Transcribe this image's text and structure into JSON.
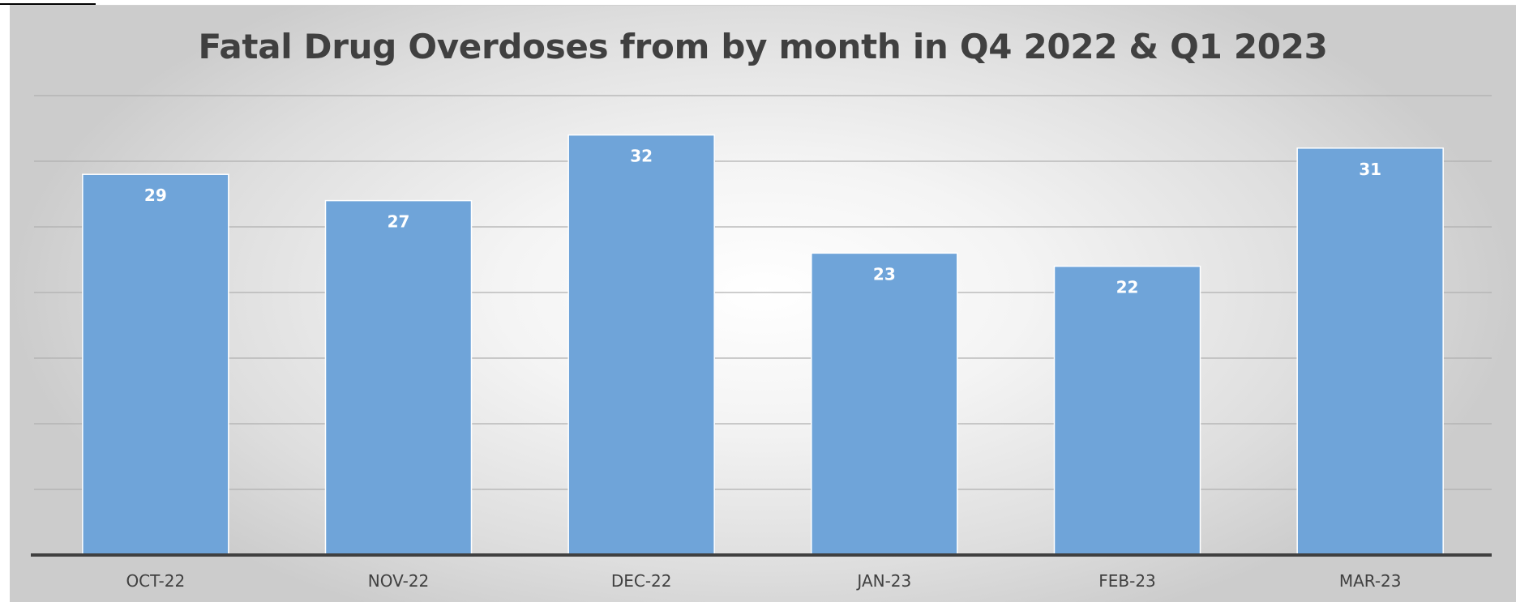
{
  "chart_data": {
    "type": "bar",
    "title": "Fatal Drug Overdoses from by month in Q4 2022 & Q1 2023",
    "xlabel": "",
    "ylabel": "",
    "categories": [
      "OCT-22",
      "NOV-22",
      "DEC-22",
      "JAN-23",
      "FEB-23",
      "MAR-23"
    ],
    "values": [
      29,
      27,
      32,
      23,
      22,
      31
    ],
    "ylim": [
      0,
      35
    ],
    "grid": true,
    "legend": "none",
    "colors": {
      "bar": "#6fa4d9",
      "bar_border": "#ffffff",
      "gridline": "#b0b0b0",
      "axis": "#404040",
      "title": "#404040",
      "data_label": "#ffffff"
    }
  }
}
